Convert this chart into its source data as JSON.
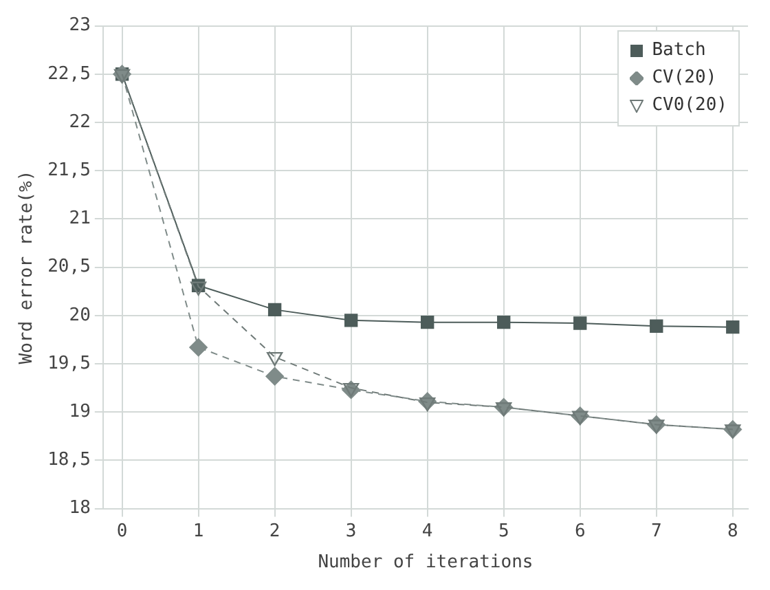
{
  "chart_data": {
    "type": "line",
    "xlabel": "Number of iterations",
    "ylabel": "Word error rate(%)",
    "x": [
      0,
      1,
      2,
      3,
      4,
      5,
      6,
      7,
      8
    ],
    "xlim": [
      -0.25,
      8.2
    ],
    "xticks": [
      0,
      1,
      2,
      3,
      4,
      5,
      6,
      7,
      8
    ],
    "ylim": [
      18,
      23
    ],
    "yticks": [
      18,
      {
        "value": 18.5,
        "label": "18,5"
      },
      19,
      {
        "value": 19.5,
        "label": "19,5"
      },
      20,
      {
        "value": 20.5,
        "label": "20,5"
      },
      21,
      {
        "value": 21.5,
        "label": "21,5"
      },
      22,
      {
        "value": 22.5,
        "label": "22,5"
      },
      23
    ],
    "grid": true,
    "legend": "top right",
    "series": [
      {
        "name": "Batch",
        "color": "#4d5c5a",
        "marker": "square",
        "line_style": "solid",
        "values": [
          22.5,
          20.31,
          20.06,
          19.95,
          19.93,
          19.93,
          19.92,
          19.89,
          19.88
        ]
      },
      {
        "name": "CV(20)",
        "color": "#7f8b89",
        "marker": "diamond",
        "line_style": "dashed",
        "values": [
          22.5,
          19.67,
          19.37,
          19.23,
          19.11,
          19.05,
          18.96,
          18.87,
          18.82
        ]
      },
      {
        "name": "CV0(20)",
        "color": "#6f7a78",
        "marker": "triangle",
        "line_style": "dashed",
        "values": [
          22.5,
          20.3,
          19.57,
          19.25,
          19.1,
          19.05,
          18.96,
          18.87,
          18.82
        ]
      }
    ]
  }
}
